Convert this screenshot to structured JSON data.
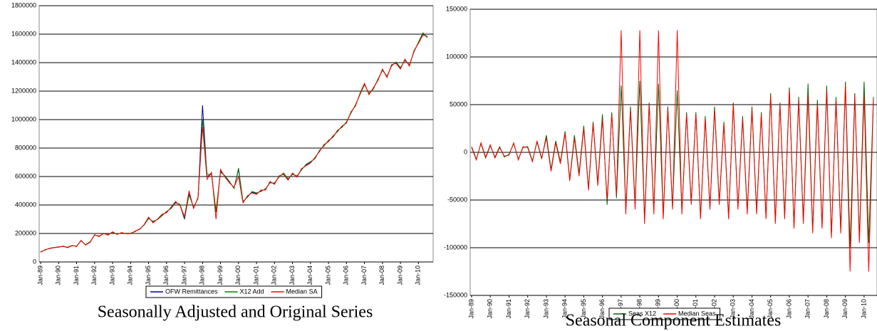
{
  "chart_data": [
    {
      "type": "line",
      "caption": "Seasonally Adjusted and Original Series",
      "grid": true,
      "legend": "bottom",
      "categories": [
        "Jan-89",
        null,
        null,
        null,
        "Jan-90",
        null,
        null,
        null,
        "Jan-91",
        null,
        null,
        null,
        "Jan-92",
        null,
        null,
        null,
        "Jan-93",
        null,
        null,
        null,
        "Jan-94",
        null,
        null,
        null,
        "Jan-95",
        null,
        null,
        null,
        "Jan-96",
        null,
        null,
        null,
        "Jan-97",
        null,
        null,
        null,
        "Jan-98",
        null,
        null,
        null,
        "Jan-99",
        null,
        null,
        null,
        "Jan-00",
        null,
        null,
        null,
        "Jan-01",
        null,
        null,
        null,
        "Jan-02",
        null,
        null,
        null,
        "Jan-03",
        null,
        null,
        null,
        "Jan-04",
        null,
        null,
        null,
        "Jan-05",
        null,
        null,
        null,
        "Jan-06",
        null,
        null,
        null,
        "Jan-07",
        null,
        null,
        null,
        "Jan-08",
        null,
        null,
        null,
        "Jan-09",
        null,
        null,
        null,
        "Jan-10",
        null,
        null
      ],
      "ylim": [
        0,
        1800000
      ],
      "yticks": [
        0,
        200000,
        400000,
        600000,
        800000,
        1000000,
        1200000,
        1400000,
        1600000,
        1800000
      ],
      "series": [
        {
          "name": "OFW Remittances",
          "color": "#00008b",
          "values": [
            70000,
            85000,
            95000,
            100000,
            105000,
            110000,
            100000,
            115000,
            110000,
            150000,
            120000,
            140000,
            190000,
            180000,
            200000,
            190000,
            210000,
            195000,
            205000,
            200000,
            200000,
            215000,
            230000,
            260000,
            310000,
            280000,
            300000,
            330000,
            350000,
            380000,
            420000,
            400000,
            300000,
            480000,
            380000,
            450000,
            1100000,
            600000,
            620000,
            350000,
            640000,
            600000,
            560000,
            520000,
            650000,
            420000,
            460000,
            490000,
            480000,
            500000,
            510000,
            560000,
            550000,
            600000,
            620000,
            580000,
            620000,
            600000,
            650000,
            680000,
            700000,
            730000,
            780000,
            820000,
            850000,
            880000,
            920000,
            950000,
            980000,
            1050000,
            1100000,
            1180000,
            1250000,
            1180000,
            1220000,
            1280000,
            1350000,
            1300000,
            1380000,
            1400000,
            1360000,
            1420000,
            1380000,
            1480000,
            1540000,
            1600000,
            1580000
          ]
        },
        {
          "name": "X12 Add",
          "color": "#008000",
          "values": [
            72000,
            83000,
            97000,
            102000,
            103000,
            112000,
            102000,
            113000,
            112000,
            148000,
            122000,
            142000,
            188000,
            183000,
            198000,
            192000,
            208000,
            197000,
            203000,
            202000,
            202000,
            213000,
            232000,
            258000,
            305000,
            285000,
            298000,
            325000,
            355000,
            375000,
            415000,
            405000,
            310000,
            470000,
            385000,
            445000,
            1000000,
            620000,
            610000,
            360000,
            630000,
            605000,
            565000,
            515000,
            660000,
            425000,
            455000,
            495000,
            485000,
            495000,
            515000,
            555000,
            555000,
            595000,
            625000,
            585000,
            615000,
            605000,
            645000,
            685000,
            705000,
            725000,
            785000,
            815000,
            855000,
            875000,
            925000,
            945000,
            985000,
            1045000,
            1105000,
            1175000,
            1245000,
            1185000,
            1215000,
            1285000,
            1345000,
            1305000,
            1375000,
            1405000,
            1365000,
            1415000,
            1385000,
            1475000,
            1545000,
            1610000,
            1575000
          ]
        },
        {
          "name": "Median SA",
          "color": "#ff0000",
          "values": [
            68000,
            86000,
            94000,
            101000,
            106000,
            108000,
            104000,
            116000,
            108000,
            152000,
            118000,
            138000,
            192000,
            178000,
            202000,
            188000,
            212000,
            193000,
            207000,
            198000,
            198000,
            217000,
            228000,
            262000,
            315000,
            275000,
            302000,
            335000,
            345000,
            385000,
            425000,
            395000,
            320000,
            500000,
            375000,
            455000,
            950000,
            580000,
            630000,
            300000,
            650000,
            595000,
            555000,
            525000,
            600000,
            415000,
            465000,
            485000,
            475000,
            505000,
            505000,
            565000,
            545000,
            605000,
            615000,
            575000,
            625000,
            595000,
            655000,
            675000,
            695000,
            735000,
            775000,
            825000,
            845000,
            885000,
            915000,
            955000,
            975000,
            1055000,
            1095000,
            1185000,
            1255000,
            1175000,
            1225000,
            1275000,
            1355000,
            1295000,
            1385000,
            1395000,
            1355000,
            1425000,
            1375000,
            1485000,
            1535000,
            1595000,
            1585000
          ]
        }
      ]
    },
    {
      "type": "line",
      "caption": "Seasonal Component Estimates",
      "grid": true,
      "legend": "bottom",
      "categories": [
        "Jan-89",
        null,
        null,
        null,
        "Jan-90",
        null,
        null,
        null,
        "Jan-91",
        null,
        null,
        null,
        "Jan-92",
        null,
        null,
        null,
        "Jan-93",
        null,
        null,
        null,
        "Jan-94",
        null,
        null,
        null,
        "Jan-95",
        null,
        null,
        null,
        "Jan-96",
        null,
        null,
        null,
        "Jan-97",
        null,
        null,
        null,
        "Jan-98",
        null,
        null,
        null,
        "Jan-99",
        null,
        null,
        null,
        "Jan-00",
        null,
        null,
        null,
        "Jan-01",
        null,
        null,
        null,
        "Jan-02",
        null,
        null,
        null,
        "Jan-03",
        null,
        null,
        null,
        "Jan-04",
        null,
        null,
        null,
        "Jan-05",
        null,
        null,
        null,
        "Jan-06",
        null,
        null,
        null,
        "Jan-07",
        null,
        null,
        null,
        "Jan-08",
        null,
        null,
        null,
        "Jan-09",
        null,
        null,
        null,
        "Jan-10",
        null,
        null
      ],
      "ylim": [
        -150000,
        150000
      ],
      "yticks": [
        -150000,
        -100000,
        -50000,
        0,
        50000,
        100000,
        150000
      ],
      "series": [
        {
          "name": "Seas X12",
          "color": "#006400",
          "values": [
            6000,
            -7000,
            9000,
            -6000,
            7000,
            -5000,
            6000,
            -5000,
            -2000,
            9000,
            -7000,
            5000,
            6000,
            -9000,
            11000,
            -7000,
            18000,
            -18000,
            12000,
            -10000,
            22000,
            -28000,
            18000,
            -22000,
            28000,
            -38000,
            32000,
            -32000,
            40000,
            -55000,
            42000,
            -48000,
            70000,
            -60000,
            48000,
            -55000,
            75000,
            -70000,
            52000,
            -60000,
            72000,
            -68000,
            48000,
            -58000,
            65000,
            -62000,
            42000,
            -52000,
            42000,
            -68000,
            38000,
            -58000,
            48000,
            -52000,
            32000,
            -68000,
            52000,
            -58000,
            38000,
            -62000,
            48000,
            -62000,
            42000,
            -68000,
            62000,
            -72000,
            52000,
            -68000,
            68000,
            -78000,
            58000,
            -72000,
            72000,
            -82000,
            55000,
            -78000,
            70000,
            -88000,
            58000,
            -82000,
            74000,
            -100000,
            62000,
            -90000,
            74000,
            -95000,
            58000
          ]
        },
        {
          "name": "Median Seas",
          "color": "#ff0000",
          "values": [
            5000,
            -8000,
            10000,
            -5000,
            8000,
            -6000,
            5000,
            -4000,
            -3000,
            10000,
            -8000,
            6000,
            5000,
            -10000,
            12000,
            -6000,
            15000,
            -20000,
            10000,
            -12000,
            20000,
            -30000,
            15000,
            -25000,
            25000,
            -40000,
            30000,
            -35000,
            35000,
            -50000,
            40000,
            -45000,
            128000,
            -65000,
            45000,
            -60000,
            128000,
            -75000,
            50000,
            -65000,
            128000,
            -70000,
            45000,
            -60000,
            128000,
            -65000,
            40000,
            -55000,
            40000,
            -70000,
            35000,
            -60000,
            45000,
            -55000,
            30000,
            -70000,
            50000,
            -60000,
            35000,
            -65000,
            45000,
            -65000,
            40000,
            -70000,
            60000,
            -75000,
            50000,
            -70000,
            65000,
            -80000,
            55000,
            -75000,
            60000,
            -85000,
            50000,
            -80000,
            65000,
            -90000,
            55000,
            -85000,
            70000,
            -125000,
            60000,
            -95000,
            60000,
            -125000,
            55000
          ]
        }
      ]
    }
  ]
}
